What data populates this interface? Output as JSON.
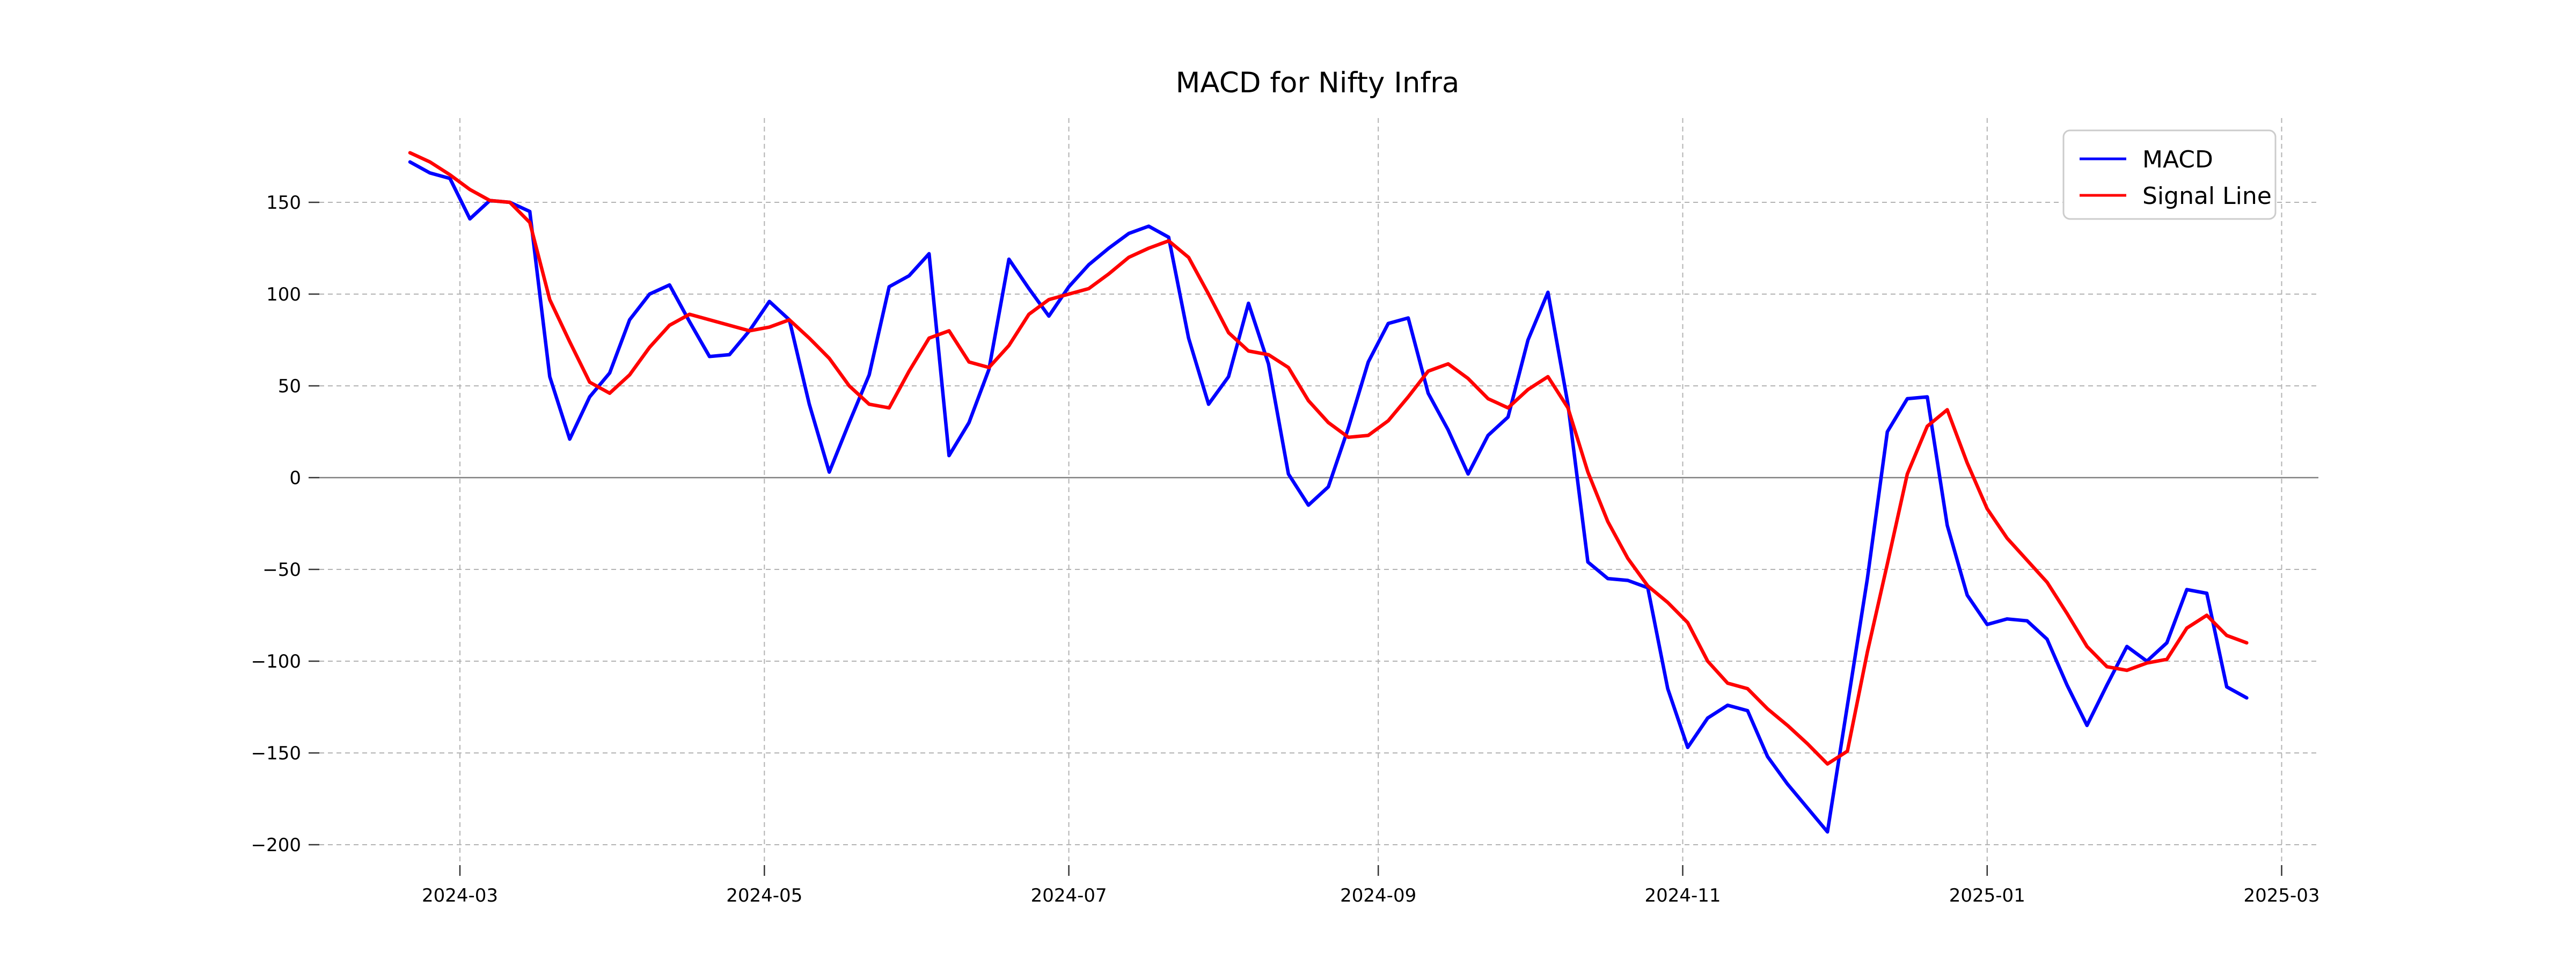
{
  "title": "MACD for Nifty Infra",
  "legend": {
    "items": [
      {
        "label": "MACD",
        "color": "#0000ff"
      },
      {
        "label": "Signal Line",
        "color": "#ff0000"
      }
    ],
    "position": "top-right"
  },
  "axes": {
    "y_ticks": [
      150,
      100,
      50,
      0,
      -50,
      -100,
      -150,
      -200
    ],
    "x_tick_labels": [
      "2024-03",
      "2024-05",
      "2024-07",
      "2024-09",
      "2024-11",
      "2025-01",
      "2025-03"
    ],
    "zero_line": 0,
    "grid": "dashed"
  },
  "colors": {
    "macd": "#0000ff",
    "signal": "#ff0000",
    "grid": "#b3b3b3",
    "zero_line": "#808080",
    "legend_border": "#cccccc"
  },
  "chart_data": {
    "type": "line",
    "title": "MACD for Nifty Infra",
    "xlabel": "",
    "ylabel": "",
    "ylim": [
      -211,
      196
    ],
    "grid": true,
    "legend_position": "upper right",
    "x": [
      "2024-02-20",
      "2024-02-24",
      "2024-02-28",
      "2024-03-03",
      "2024-03-07",
      "2024-03-11",
      "2024-03-15",
      "2024-03-19",
      "2024-03-23",
      "2024-03-27",
      "2024-03-31",
      "2024-04-04",
      "2024-04-08",
      "2024-04-12",
      "2024-04-16",
      "2024-04-20",
      "2024-04-24",
      "2024-04-28",
      "2024-05-02",
      "2024-05-06",
      "2024-05-10",
      "2024-05-14",
      "2024-05-18",
      "2024-05-22",
      "2024-05-26",
      "2024-05-30",
      "2024-06-03",
      "2024-06-07",
      "2024-06-11",
      "2024-06-15",
      "2024-06-19",
      "2024-06-23",
      "2024-06-27",
      "2024-07-01",
      "2024-07-05",
      "2024-07-09",
      "2024-07-13",
      "2024-07-17",
      "2024-07-21",
      "2024-07-25",
      "2024-07-29",
      "2024-08-02",
      "2024-08-06",
      "2024-08-10",
      "2024-08-14",
      "2024-08-18",
      "2024-08-22",
      "2024-08-26",
      "2024-08-30",
      "2024-09-03",
      "2024-09-07",
      "2024-09-11",
      "2024-09-15",
      "2024-09-19",
      "2024-09-23",
      "2024-09-27",
      "2024-10-01",
      "2024-10-05",
      "2024-10-09",
      "2024-10-13",
      "2024-10-17",
      "2024-10-21",
      "2024-10-25",
      "2024-10-29",
      "2024-11-02",
      "2024-11-06",
      "2024-11-10",
      "2024-11-14",
      "2024-11-18",
      "2024-11-22",
      "2024-11-26",
      "2024-11-30",
      "2024-12-04",
      "2024-12-08",
      "2024-12-12",
      "2024-12-16",
      "2024-12-20",
      "2024-12-24",
      "2024-12-28",
      "2025-01-01",
      "2025-01-05",
      "2025-01-09",
      "2025-01-13",
      "2025-01-17",
      "2025-01-21",
      "2025-01-25",
      "2025-01-29",
      "2025-02-02",
      "2025-02-06",
      "2025-02-10",
      "2025-02-14",
      "2025-02-18",
      "2025-02-22"
    ],
    "series": [
      {
        "name": "MACD",
        "color": "#0000ff",
        "values": [
          172,
          166,
          163,
          141,
          151,
          150,
          145,
          55,
          21,
          44,
          57,
          86,
          100,
          105,
          85,
          66,
          67,
          80,
          96,
          86,
          40,
          3,
          30,
          56,
          104,
          110,
          122,
          12,
          30,
          59,
          119,
          103,
          88,
          104,
          116,
          125,
          133,
          137,
          131,
          76,
          40,
          55,
          95,
          62,
          2,
          -15,
          -5,
          27,
          63,
          84,
          87,
          46,
          26,
          2,
          23,
          33,
          75,
          101,
          40,
          -46,
          -55,
          -56,
          -60,
          -115,
          -147,
          -131,
          -124,
          -127,
          -152,
          -167,
          -180,
          -193,
          -124,
          -55,
          25,
          43,
          44,
          -26,
          -64,
          -80,
          -77,
          -78,
          -88,
          -113,
          -135,
          -113,
          -92,
          -100,
          -90,
          -61,
          -63,
          -114,
          -120
        ]
      },
      {
        "name": "Signal Line",
        "color": "#ff0000",
        "values": [
          177,
          172,
          165,
          157,
          151,
          150,
          139,
          97,
          74,
          52,
          46,
          56,
          71,
          83,
          89,
          86,
          83,
          80,
          82,
          86,
          76,
          65,
          50,
          40,
          38,
          58,
          76,
          80,
          63,
          60,
          72,
          89,
          97,
          100,
          103,
          111,
          120,
          125,
          129,
          120,
          100,
          79,
          69,
          67,
          60,
          42,
          30,
          22,
          23,
          31,
          44,
          58,
          62,
          54,
          43,
          38,
          48,
          55,
          38,
          3,
          -24,
          -44,
          -59,
          -68,
          -79,
          -100,
          -112,
          -115,
          -126,
          -135,
          -145,
          -156,
          -149,
          -95,
          -47,
          2,
          28,
          37,
          8,
          -17,
          -33,
          -45,
          -57,
          -74,
          -92,
          -103,
          -105,
          -101,
          -99,
          -82,
          -75,
          -86,
          -90
        ]
      }
    ]
  }
}
